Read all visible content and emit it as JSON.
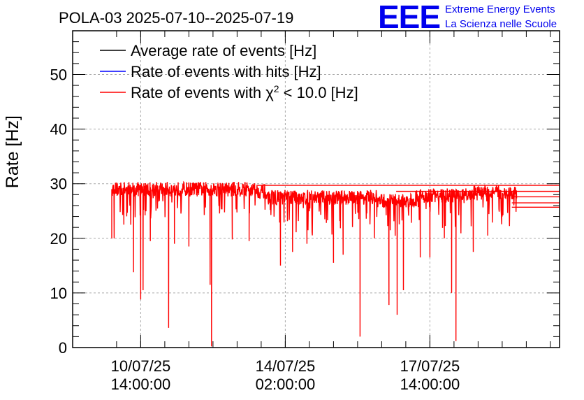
{
  "chart_data": {
    "type": "line",
    "title": "POLA-03 2025-07-10--2025-07-19",
    "ylabel": "Rate [Hz]",
    "xlabel": "",
    "ylim": [
      0,
      58
    ],
    "y_ticks": [
      0,
      10,
      20,
      30,
      40,
      50
    ],
    "x_range_days": [
      0,
      9.1
    ],
    "x_ticks": [
      {
        "t": 0.6,
        "line1": "10/07/25",
        "line2": "14:00:00"
      },
      {
        "t": 3.6,
        "line1": "14/07/25",
        "line2": "02:00:00"
      },
      {
        "t": 6.6,
        "line1": "17/07/25",
        "line2": "14:00:00"
      }
    ],
    "grid": true,
    "legend_position": "top-left",
    "legend": [
      {
        "label_pre": "Average rate of events [Hz]",
        "sup": "",
        "label_post": "",
        "color": "#000000"
      },
      {
        "label_pre": "Rate of events with hits [Hz]",
        "sup": "",
        "label_post": "",
        "color": "#0000ff"
      },
      {
        "label_pre": "Rate of events with χ",
        "sup": "2",
        "label_post": " < 10.0 [Hz]",
        "color": "#ff0000"
      }
    ],
    "series": [
      {
        "name": "Rate of events with χ² < 10.0 [Hz]",
        "color": "#ff0000",
        "t_start": 0.0,
        "t_end": 8.4,
        "segments": [
          {
            "t": 0.0,
            "level": 29.0
          },
          {
            "t": 3.0,
            "level": 28.6
          },
          {
            "t": 3.2,
            "level": 27.5
          },
          {
            "t": 5.5,
            "level": 26.8
          },
          {
            "t": 6.3,
            "level": 27.8
          },
          {
            "t": 7.5,
            "level": 28.3
          },
          {
            "t": 8.4,
            "level": 28.6
          }
        ],
        "noise": 1.5,
        "dips": [
          {
            "t": 0.05,
            "value": 20.0
          },
          {
            "t": 0.25,
            "value": 22.5
          },
          {
            "t": 0.45,
            "value": 13.8
          },
          {
            "t": 0.6,
            "value": 8.8
          },
          {
            "t": 0.65,
            "value": 10.5
          },
          {
            "t": 0.8,
            "value": 19.5
          },
          {
            "t": 1.18,
            "value": 3.6
          },
          {
            "t": 1.3,
            "value": 19.0
          },
          {
            "t": 1.6,
            "value": 18.5
          },
          {
            "t": 2.04,
            "value": 11.5
          },
          {
            "t": 2.07,
            "value": 0.2
          },
          {
            "t": 2.5,
            "value": 19.8
          },
          {
            "t": 2.85,
            "value": 19.5
          },
          {
            "t": 3.5,
            "value": 15.0
          },
          {
            "t": 3.75,
            "value": 17.5
          },
          {
            "t": 4.05,
            "value": 19.0
          },
          {
            "t": 4.6,
            "value": 15.5
          },
          {
            "t": 4.8,
            "value": 17.0
          },
          {
            "t": 5.15,
            "value": 2.0
          },
          {
            "t": 5.45,
            "value": 20.0
          },
          {
            "t": 5.75,
            "value": 7.8
          },
          {
            "t": 5.92,
            "value": 6.0
          },
          {
            "t": 6.05,
            "value": 10.5
          },
          {
            "t": 6.4,
            "value": 16.5
          },
          {
            "t": 6.6,
            "value": 16.5
          },
          {
            "t": 6.9,
            "value": 20.0
          },
          {
            "t": 7.05,
            "value": 10.0
          },
          {
            "t": 7.14,
            "value": 1.2
          },
          {
            "t": 7.5,
            "value": 17.5
          },
          {
            "t": 7.8,
            "value": 20.5
          },
          {
            "t": 8.1,
            "value": 24.0
          }
        ],
        "tail_lines": [
          {
            "t_from": 3.0,
            "value": 29.7
          },
          {
            "t_from": 5.9,
            "value": 28.6
          },
          {
            "t_from": 8.3,
            "value": 27.6
          },
          {
            "t_from": 8.3,
            "value": 26.5
          },
          {
            "t_from": 8.3,
            "value": 25.7
          }
        ]
      }
    ]
  },
  "logo": {
    "big_text": "EEE",
    "line1": "Extreme Energy Events",
    "line2": "La Scienza nelle Scuole",
    "color": "#0000ee"
  }
}
